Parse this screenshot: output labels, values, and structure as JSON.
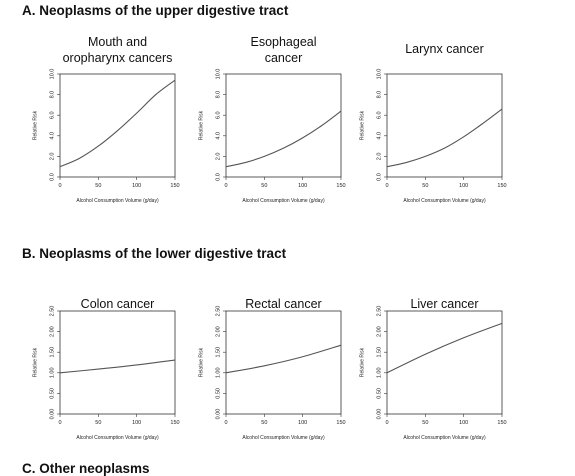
{
  "sections": [
    {
      "label": "A. Neoplasms of the upper digestive tract"
    },
    {
      "label": "B. Neoplasms of the lower digestive tract"
    },
    {
      "label": "C. Other neoplasms"
    }
  ],
  "chart_data": [
    {
      "type": "line",
      "title": "Mouth and oropharynx cancers",
      "title_lines": [
        "Mouth and",
        "oropharynx cancers"
      ],
      "xlabel": "Alcohol Consumption Volume (g/day)",
      "ylabel": "Relative Risk",
      "xlim": [
        0,
        150
      ],
      "ylim": [
        0,
        10
      ],
      "xticks": [
        0,
        50,
        100,
        150
      ],
      "yticks": [
        "0.0",
        "2.0",
        "4.0",
        "6.0",
        "8.0",
        "10.0"
      ],
      "x": [
        0,
        25,
        50,
        75,
        100,
        125,
        150
      ],
      "y": [
        1.0,
        1.8,
        3.0,
        4.5,
        6.2,
        8.0,
        9.4
      ]
    },
    {
      "type": "line",
      "title": "Esophageal cancer",
      "title_lines": [
        "Esophageal",
        "cancer"
      ],
      "xlabel": "Alcohol Consumption Volume (g/day)",
      "ylabel": "Relative Risk",
      "xlim": [
        0,
        150
      ],
      "ylim": [
        0,
        10
      ],
      "xticks": [
        0,
        50,
        100,
        150
      ],
      "yticks": [
        "0.0",
        "2.0",
        "4.0",
        "6.0",
        "8.0",
        "10.0"
      ],
      "x": [
        0,
        25,
        50,
        75,
        100,
        125,
        150
      ],
      "y": [
        1.0,
        1.4,
        2.0,
        2.8,
        3.8,
        5.0,
        6.4
      ]
    },
    {
      "type": "line",
      "title": "Larynx cancer",
      "title_lines": [
        "Larynx cancer"
      ],
      "xlabel": "Alcohol Consumption Volume (g/day)",
      "ylabel": "Relative Risk",
      "xlim": [
        0,
        150
      ],
      "ylim": [
        0,
        10
      ],
      "xticks": [
        0,
        50,
        100,
        150
      ],
      "yticks": [
        "0.0",
        "2.0",
        "4.0",
        "6.0",
        "8.0",
        "10.0"
      ],
      "x": [
        0,
        25,
        50,
        75,
        100,
        125,
        150
      ],
      "y": [
        1.0,
        1.4,
        2.0,
        2.8,
        3.9,
        5.2,
        6.6
      ]
    },
    {
      "type": "line",
      "title": "Colon cancer",
      "title_lines": [
        "Colon cancer"
      ],
      "xlabel": "Alcohol Consumption Volume (g/day)",
      "ylabel": "Relative Risk",
      "xlim": [
        0,
        150
      ],
      "ylim": [
        0,
        2.5
      ],
      "xticks": [
        0,
        50,
        100,
        150
      ],
      "yticks": [
        "0.00",
        "0.50",
        "1.00",
        "1.50",
        "2.00",
        "2.50"
      ],
      "x": [
        0,
        50,
        100,
        150
      ],
      "y": [
        1.0,
        1.09,
        1.19,
        1.31
      ]
    },
    {
      "type": "line",
      "title": "Rectal cancer",
      "title_lines": [
        "Rectal cancer"
      ],
      "xlabel": "Alcohol Consumption Volume (g/day)",
      "ylabel": "Relative Risk",
      "xlim": [
        0,
        150
      ],
      "ylim": [
        0,
        2.5
      ],
      "xticks": [
        0,
        50,
        100,
        150
      ],
      "yticks": [
        "0.00",
        "0.50",
        "1.00",
        "1.50",
        "2.00",
        "2.50"
      ],
      "x": [
        0,
        50,
        100,
        150
      ],
      "y": [
        1.0,
        1.17,
        1.39,
        1.67
      ]
    },
    {
      "type": "line",
      "title": "Liver cancer",
      "title_lines": [
        "Liver cancer"
      ],
      "xlabel": "Alcohol Consumption Volume (g/day)",
      "ylabel": "Relative Risk",
      "xlim": [
        0,
        150
      ],
      "ylim": [
        0,
        2.5
      ],
      "xticks": [
        0,
        50,
        100,
        150
      ],
      "yticks": [
        "0.00",
        "0.50",
        "1.00",
        "1.50",
        "2.00",
        "2.50"
      ],
      "x": [
        0,
        50,
        100,
        150
      ],
      "y": [
        1.0,
        1.45,
        1.85,
        2.2
      ]
    }
  ]
}
